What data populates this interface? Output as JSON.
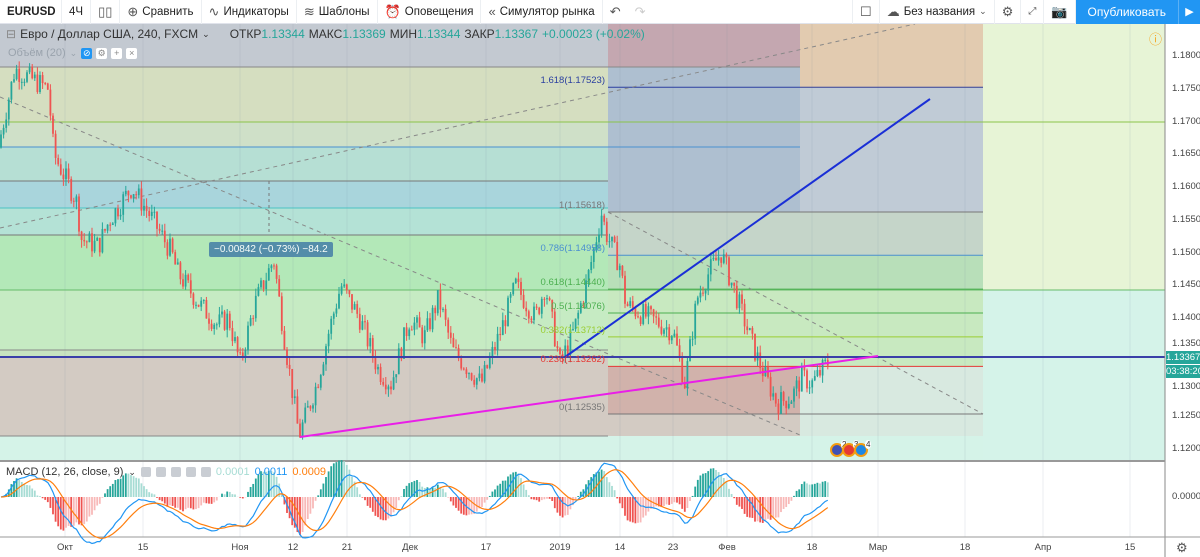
{
  "toolbar": {
    "symbol": "EURUSD",
    "interval": "4Ч",
    "compare": "Сравнить",
    "indicators": "Индикаторы",
    "templates": "Шаблоны",
    "alerts": "Оповещения",
    "replay": "Симулятор рынка",
    "layout_name": "Без названия",
    "publish": "Опубликовать"
  },
  "legend": {
    "title": "Евро / Доллар США, 240, FXCM",
    "open_label": "ОТКР",
    "open": "1.13344",
    "high_label": "МАКС",
    "high": "1.13369",
    "low_label": "МИН",
    "low": "1.13344",
    "close_label": "ЗАКР",
    "close": "1.13367",
    "change": "+0.00023 (+0.02%)",
    "volume": "Объём (20)"
  },
  "macd": {
    "label": "MACD (12, 26, close, 9)",
    "hist": "0.0001",
    "macd": "0.0011",
    "signal": "0.0009",
    "zero_label": "0.0000",
    "colors": {
      "macd": "#2196f3",
      "signal": "#ff7f0e",
      "hist_up": "#26a69a",
      "hist_down": "#ef5350"
    }
  },
  "price_axis": {
    "labels": [
      "1.18000",
      "1.17500",
      "1.17000",
      "1.16500",
      "1.16000",
      "1.15500",
      "1.15000",
      "1.14500",
      "1.14000",
      "1.13500",
      "1.13000",
      "1.12500",
      "1.12000"
    ],
    "current_price": "1.13367",
    "countdown": "03:38:20"
  },
  "time_axis": {
    "labels": [
      "Окт",
      "15",
      "Ноя",
      "12",
      "21",
      "Дек",
      "17",
      "2019",
      "14",
      "23",
      "Фев",
      "18",
      "Мар",
      "18",
      "Апр",
      "15"
    ]
  },
  "measure": {
    "text": "−0.00842 (−0.73%) −84.2"
  },
  "fib": [
    {
      "text": "1.618(1.17523)",
      "price": 1.17523,
      "color": "#2a3fa0"
    },
    {
      "text": "1(1.15618)",
      "price": 1.15618,
      "color": "#777"
    },
    {
      "text": "0.786(1.14958)",
      "price": 1.14958,
      "color": "#4a8fd0"
    },
    {
      "text": "0.618(1.14440)",
      "price": 1.1444,
      "color": "#4caf50"
    },
    {
      "text": "0.5(1.14076)",
      "price": 1.14076,
      "color": "#4caf50"
    },
    {
      "text": "0.382(1.13712)",
      "price": 1.13712,
      "color": "#9acd32"
    },
    {
      "text": "0.236(1.13262)",
      "price": 1.13262,
      "color": "#e53935"
    },
    {
      "text": "0(1.12535)",
      "price": 1.12535,
      "color": "#777"
    }
  ],
  "events": [
    "2",
    "3",
    "4"
  ],
  "chart_data": {
    "type": "candlestick",
    "symbol": "EURUSD",
    "interval": "240",
    "ylim": [
      1.1185,
      1.1865
    ],
    "price_path": [
      [
        "2018-09-19",
        1.166
      ],
      [
        "2018-09-22",
        1.178
      ],
      [
        "2018-09-26",
        1.176
      ],
      [
        "2018-09-28",
        1.175
      ],
      [
        "2018-09-29",
        1.165
      ],
      [
        "2018-10-03",
        1.158
      ],
      [
        "2018-10-04",
        1.152
      ],
      [
        "2018-10-07",
        1.151
      ],
      [
        "2018-10-09",
        1.155
      ],
      [
        "2018-10-13",
        1.16
      ],
      [
        "2018-10-16",
        1.156
      ],
      [
        "2018-10-20",
        1.15
      ],
      [
        "2018-10-21",
        1.147
      ],
      [
        "2018-10-25",
        1.142
      ],
      [
        "2018-10-28",
        1.139
      ],
      [
        "2018-10-30",
        1.14
      ],
      [
        "2018-11-01",
        1.133
      ],
      [
        "2018-11-04",
        1.142
      ],
      [
        "2018-11-08",
        1.149
      ],
      [
        "2018-11-10",
        1.138
      ],
      [
        "2018-11-13",
        1.122
      ],
      [
        "2018-11-16",
        1.13
      ],
      [
        "2018-11-18",
        1.138
      ],
      [
        "2018-11-20",
        1.145
      ],
      [
        "2018-11-23",
        1.14
      ],
      [
        "2018-11-26",
        1.132
      ],
      [
        "2018-11-28",
        1.13
      ],
      [
        "2018-12-01",
        1.14
      ],
      [
        "2018-12-04",
        1.137
      ],
      [
        "2018-12-07",
        1.143
      ],
      [
        "2018-12-10",
        1.135
      ],
      [
        "2018-12-16",
        1.13
      ],
      [
        "2018-12-20",
        1.138
      ],
      [
        "2018-12-23",
        1.145
      ],
      [
        "2018-12-27",
        1.14
      ],
      [
        "2018-12-29",
        1.145
      ],
      [
        "2019-01-01",
        1.133
      ],
      [
        "2019-01-04",
        1.138
      ],
      [
        "2019-01-07",
        1.146
      ],
      [
        "2019-01-10",
        1.156
      ],
      [
        "2019-01-11",
        1.153
      ],
      [
        "2019-01-14",
        1.148
      ],
      [
        "2019-01-15",
        1.142
      ],
      [
        "2019-01-19",
        1.14
      ],
      [
        "2019-01-23",
        1.138
      ],
      [
        "2019-01-25",
        1.13
      ],
      [
        "2019-01-27",
        1.143
      ],
      [
        "2019-01-29",
        1.147
      ],
      [
        "2019-01-31",
        1.15
      ],
      [
        "2019-02-03",
        1.143
      ],
      [
        "2019-02-07",
        1.134
      ],
      [
        "2019-02-11",
        1.127
      ],
      [
        "2019-02-14",
        1.128
      ],
      [
        "2019-02-16",
        1.131
      ],
      [
        "2019-02-18",
        1.13
      ],
      [
        "2019-02-21",
        1.13367
      ]
    ]
  }
}
